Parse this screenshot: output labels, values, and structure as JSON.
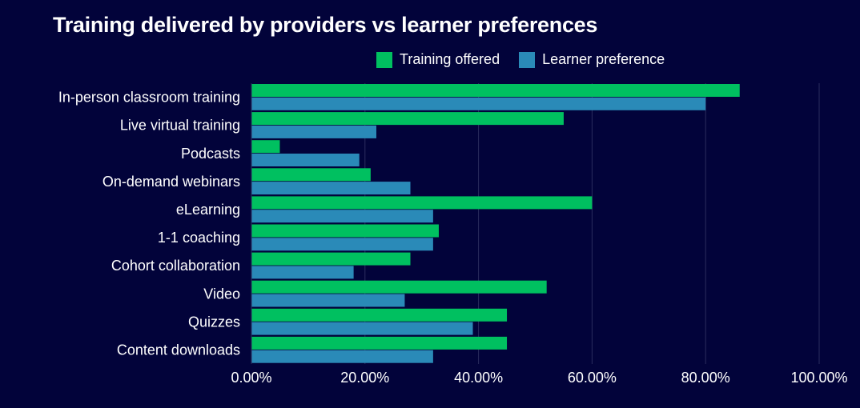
{
  "chart_data": {
    "type": "bar",
    "orientation": "horizontal",
    "title": "Training delivered by providers vs learner preferences",
    "categories": [
      "In-person classroom training",
      "Live virtual training",
      "Podcasts",
      "On-demand webinars",
      "eLearning",
      "1-1 coaching",
      "Cohort collaboration",
      "Video",
      "Quizzes",
      "Content downloads"
    ],
    "series": [
      {
        "name": "Training offered",
        "color": "#00c060",
        "values": [
          86,
          55,
          5,
          21,
          60,
          33,
          28,
          52,
          45,
          45
        ]
      },
      {
        "name": "Learner preference",
        "color": "#2a8ab8",
        "values": [
          80,
          22,
          19,
          28,
          32,
          32,
          18,
          27,
          39,
          32
        ]
      }
    ],
    "xlim": [
      0,
      100
    ],
    "x_ticks": [
      "0.00%",
      "20.00%",
      "40.00%",
      "60.00%",
      "80.00%",
      "100.00%"
    ],
    "grid": true,
    "legend_position": "top-right",
    "background": "#02033a"
  }
}
